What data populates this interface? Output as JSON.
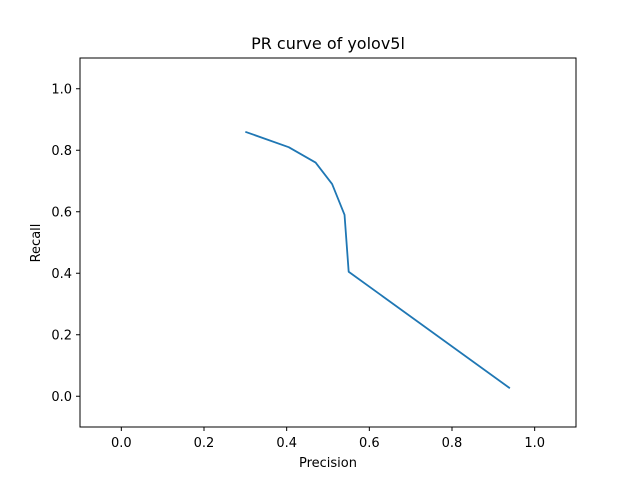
{
  "chart_data": {
    "type": "line",
    "title": "PR curve of yolov5l",
    "xlabel": "Precision",
    "ylabel": "Recall",
    "xlim": [
      -0.1,
      1.1
    ],
    "ylim": [
      -0.1,
      1.1
    ],
    "xticks": [
      0.0,
      0.2,
      0.4,
      0.6,
      0.8,
      1.0
    ],
    "yticks": [
      0.0,
      0.2,
      0.4,
      0.6,
      0.8,
      1.0
    ],
    "xtick_labels": [
      "0.0",
      "0.2",
      "0.4",
      "0.6",
      "0.8",
      "1.0"
    ],
    "ytick_labels": [
      "0.0",
      "0.2",
      "0.4",
      "0.6",
      "0.8",
      "1.0"
    ],
    "grid": false,
    "series": [
      {
        "color": "#1f77b4",
        "x": [
          0.3,
          0.405,
          0.47,
          0.51,
          0.54,
          0.55,
          0.94
        ],
        "y": [
          0.86,
          0.81,
          0.76,
          0.69,
          0.59,
          0.405,
          0.026
        ]
      }
    ]
  }
}
